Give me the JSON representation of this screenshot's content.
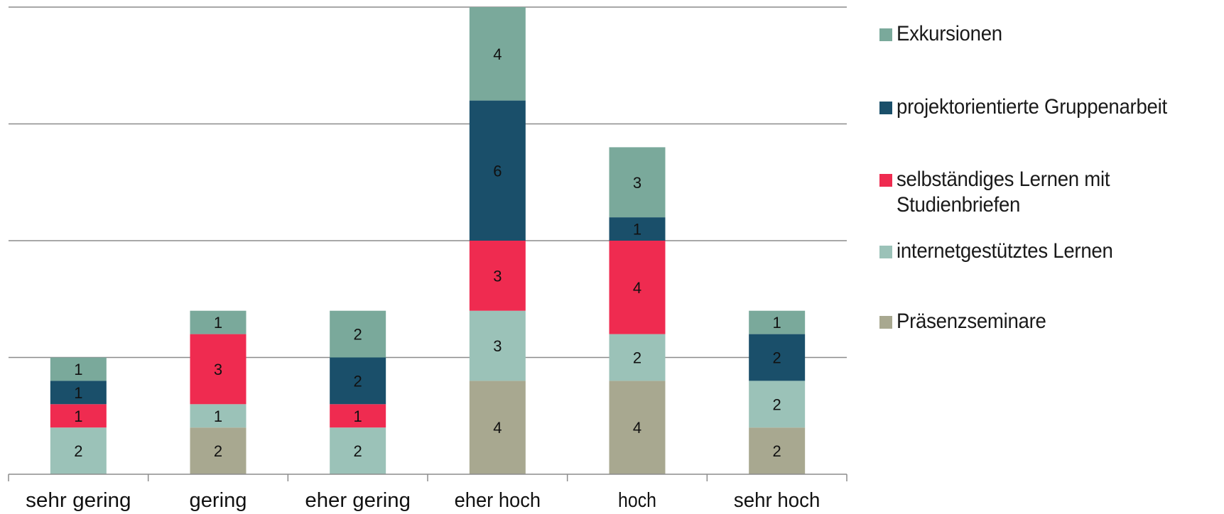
{
  "chart_data": {
    "type": "bar",
    "stacked": true,
    "categories": [
      "sehr gering",
      "gering",
      "eher gering",
      "eher hoch",
      "hoch",
      "sehr hoch"
    ],
    "series": [
      {
        "name": "Präsenzseminare",
        "color": "#a8a890",
        "values": [
          0,
          2,
          0,
          4,
          4,
          2
        ]
      },
      {
        "name": "internetgestütztes Lernen",
        "color": "#9bc2b8",
        "values": [
          2,
          1,
          2,
          3,
          2,
          2
        ]
      },
      {
        "name": "selbständiges Lernen mit Studienbriefen",
        "color": "#ef2b50",
        "values": [
          1,
          3,
          1,
          3,
          4,
          0
        ]
      },
      {
        "name": "projektorientierte Gruppenarbeit",
        "color": "#1a4f6a",
        "values": [
          1,
          0,
          2,
          6,
          1,
          2
        ]
      },
      {
        "name": "Exkursionen",
        "color": "#7aa99b",
        "values": [
          1,
          1,
          2,
          4,
          3,
          1
        ]
      }
    ],
    "ylim": [
      0,
      20
    ],
    "grid": true,
    "legend": "right",
    "data_labels": true,
    "xlabel": "",
    "ylabel": "",
    "title": ""
  },
  "legend_order": [
    {
      "name": "Exkursionen",
      "color": "#7aa99b"
    },
    {
      "name": "projektorientierte Gruppenarbeit",
      "color": "#1a4f6a"
    },
    {
      "name": "selbständiges Lernen mit Studienbriefen",
      "color": "#ef2b50"
    },
    {
      "name": "internetgestütztes Lernen",
      "color": "#9bc2b8"
    },
    {
      "name": "Präsenzseminare",
      "color": "#a8a890"
    }
  ]
}
